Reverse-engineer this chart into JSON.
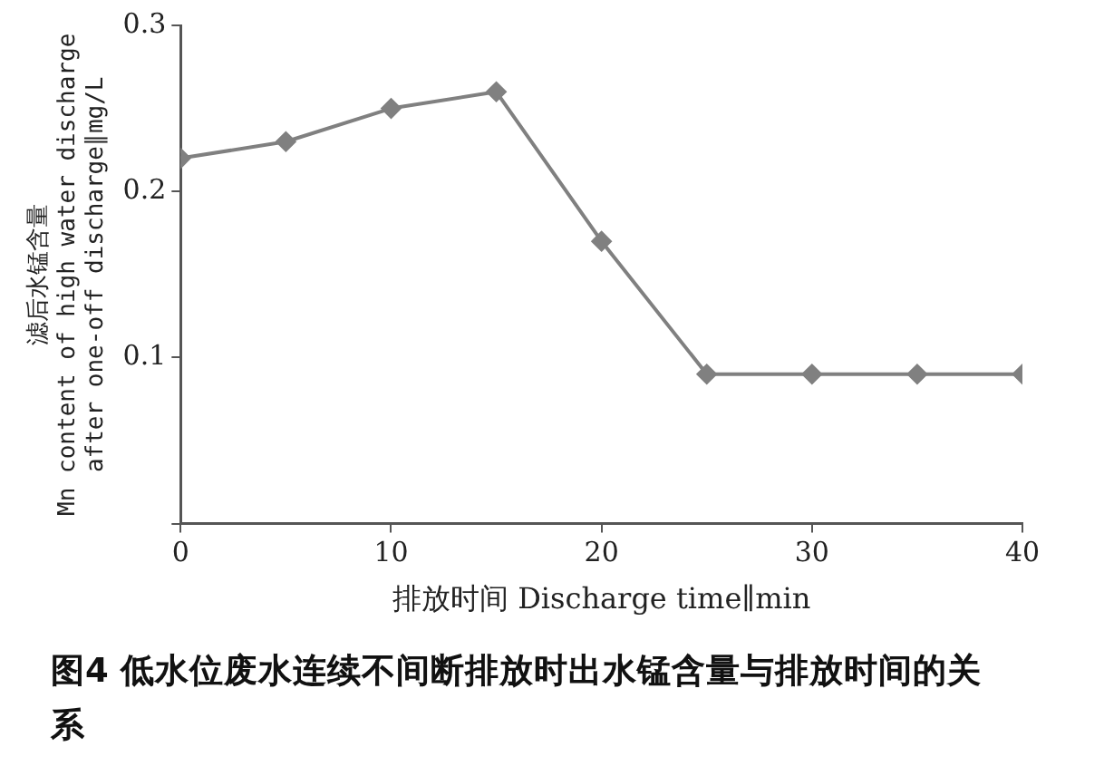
{
  "chart_data": {
    "type": "line",
    "xlabel": "排放时间 Discharge time∥min",
    "ylabel": "滤后水锰含量\nMn content of high water discharge\nafter one-off discharge∥mg/L",
    "x": [
      0,
      5,
      10,
      15,
      20,
      25,
      30,
      35,
      40
    ],
    "series": [
      {
        "color": "#808080",
        "values": [
          0.22,
          0.23,
          0.25,
          0.26,
          0.17,
          0.09,
          0.09,
          0.09,
          0.09
        ]
      }
    ],
    "xlim": [
      0,
      40
    ],
    "xticks": [
      0,
      10,
      20,
      30,
      40
    ],
    "ylim": [
      0,
      0.3
    ],
    "yticks": [
      {
        "value": 0,
        "label": null
      },
      0.1,
      0.2,
      0.3
    ],
    "marker": "diamond",
    "line_style": "solid",
    "grid": false,
    "legend": false,
    "annotations": [
      "图4  低水位废水连续不间断排放时出水锰含量与排放时间的关系"
    ]
  }
}
